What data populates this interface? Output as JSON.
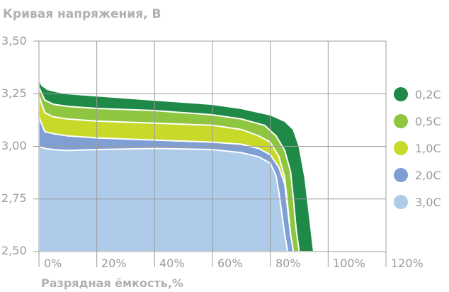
{
  "chart_data": {
    "type": "area",
    "title": "Кривая напряжения, В",
    "xlabel": "Разрядная ёмкость,%",
    "ylabel": "",
    "xlim": [
      0,
      120
    ],
    "ylim": [
      2.5,
      3.5
    ],
    "grid": true,
    "legend_position": "right",
    "x_ticks": [
      "0%",
      "20%",
      "40%",
      "60%",
      "80%",
      "100%",
      "120%"
    ],
    "y_ticks": [
      "3,50",
      "3,25",
      "3,00",
      "2,75",
      "2,50"
    ],
    "series": [
      {
        "name": "0,2C",
        "color": "#1f8a47",
        "x": [
          0,
          1,
          3,
          6,
          10,
          20,
          40,
          60,
          70,
          80,
          85,
          88,
          90,
          92,
          94,
          95
        ],
        "y": [
          3.32,
          3.29,
          3.27,
          3.26,
          3.25,
          3.24,
          3.22,
          3.2,
          3.18,
          3.15,
          3.12,
          3.08,
          3.0,
          2.85,
          2.62,
          2.5
        ]
      },
      {
        "name": "0,5C",
        "color": "#8fc640",
        "x": [
          0,
          2,
          5,
          10,
          20,
          40,
          60,
          70,
          78,
          82,
          85,
          87,
          88,
          89,
          90
        ],
        "y": [
          3.28,
          3.22,
          3.2,
          3.19,
          3.18,
          3.17,
          3.15,
          3.13,
          3.1,
          3.05,
          2.98,
          2.88,
          2.75,
          2.6,
          2.5
        ]
      },
      {
        "name": "1,0C",
        "color": "#c8d92a",
        "x": [
          0,
          2,
          5,
          10,
          20,
          40,
          60,
          70,
          76,
          80,
          83,
          85,
          86,
          87,
          88
        ],
        "y": [
          3.24,
          3.16,
          3.14,
          3.13,
          3.12,
          3.11,
          3.1,
          3.08,
          3.05,
          3.02,
          2.95,
          2.85,
          2.72,
          2.58,
          2.5
        ]
      },
      {
        "name": "2,0C",
        "color": "#7f9fd4",
        "x": [
          0,
          2,
          5,
          10,
          20,
          40,
          60,
          70,
          76,
          80,
          83,
          85,
          86,
          87,
          88
        ],
        "y": [
          3.14,
          3.07,
          3.06,
          3.05,
          3.04,
          3.03,
          3.02,
          3.01,
          2.99,
          2.96,
          2.9,
          2.82,
          2.7,
          2.58,
          2.5
        ]
      },
      {
        "name": "3,0C",
        "color": "#aecbea",
        "x": [
          0,
          2,
          5,
          10,
          20,
          40,
          60,
          70,
          76,
          80,
          82,
          83,
          84,
          85,
          86
        ],
        "y": [
          3.0,
          2.99,
          2.985,
          2.98,
          2.985,
          2.99,
          2.985,
          2.97,
          2.95,
          2.92,
          2.86,
          2.78,
          2.68,
          2.58,
          2.5
        ]
      }
    ]
  }
}
